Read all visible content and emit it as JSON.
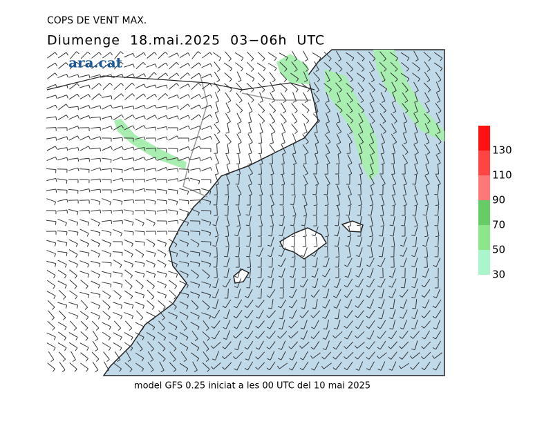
{
  "header": {
    "title": "COPS DE VENT MAX.",
    "subtitle": "Diumenge  18.mai.2025  03−06h  UTC",
    "logo": "ara.cat"
  },
  "footer": "model GFS 0.25 iniciat a les 00 UTC del 10 mai 2025",
  "colorbar": {
    "ticks": [
      30,
      50,
      70,
      90,
      110,
      130
    ],
    "colors": [
      "#aaf5cc",
      "#8ee68a",
      "#66cc66",
      "#ff7777",
      "#ff4444",
      "#ff1111"
    ]
  }
}
